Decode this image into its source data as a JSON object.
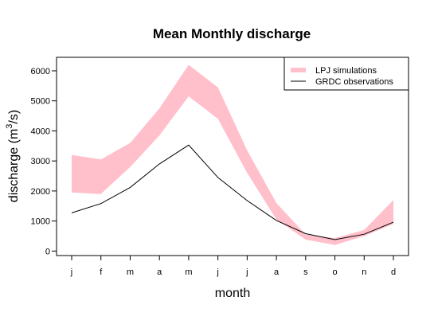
{
  "chart_data": {
    "type": "area",
    "title": "Mean Monthly discharge",
    "xlabel": "month",
    "ylabel_main": "discharge (m",
    "ylabel_sup": "3",
    "ylabel_tail": "/s)",
    "categories": [
      "j",
      "f",
      "m",
      "a",
      "m",
      "j",
      "j",
      "a",
      "s",
      "o",
      "n",
      "d"
    ],
    "ylim": [
      -150,
      6450
    ],
    "yticks": [
      0,
      1000,
      2000,
      3000,
      4000,
      5000,
      6000
    ],
    "grid": false,
    "legend_position": "top-right",
    "series": [
      {
        "name": "LPJ simulations",
        "kind": "band",
        "color": "#FFC0CB",
        "lower": [
          1950,
          1900,
          2800,
          3850,
          5150,
          4400,
          2600,
          1050,
          380,
          200,
          500,
          900
        ],
        "upper": [
          3200,
          3050,
          3600,
          4750,
          6200,
          5450,
          3350,
          1600,
          550,
          430,
          700,
          1700
        ]
      },
      {
        "name": "GRDC observations",
        "kind": "line",
        "color": "#000000",
        "values": [
          1270,
          1580,
          2120,
          2900,
          3530,
          2450,
          1680,
          1020,
          580,
          380,
          560,
          960
        ]
      }
    ]
  }
}
